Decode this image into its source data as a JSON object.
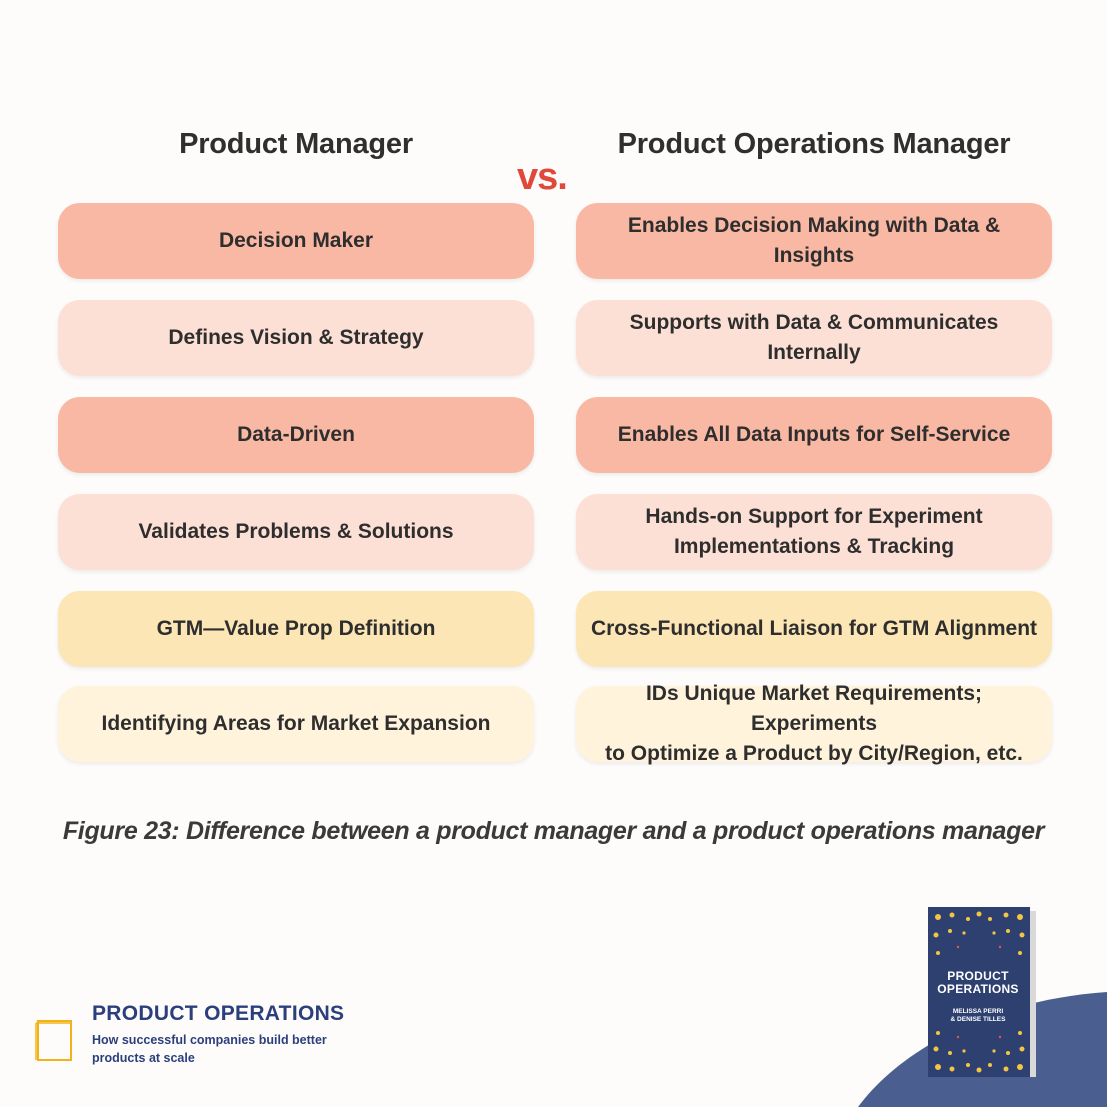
{
  "headers": {
    "left": "Product Manager",
    "vs": "vs.",
    "right": "Product Operations Manager"
  },
  "rows": [
    {
      "left": "Decision Maker",
      "right": "Enables Decision Making with Data & Insights",
      "color": "#f9b8a3"
    },
    {
      "left": "Defines Vision & Strategy",
      "right": "Supports with Data & Communicates Internally",
      "color": "#fde0d5"
    },
    {
      "left": "Data-Driven",
      "right": "Enables All Data Inputs for Self-Service",
      "color": "#f9b8a3"
    },
    {
      "left": "Validates Problems & Solutions",
      "right": "Hands-on Support for Experiment\nImplementations & Tracking",
      "color": "#fde0d5"
    },
    {
      "left": "GTM—Value Prop Definition",
      "right": "Cross-Functional Liaison for GTM Alignment",
      "color": "#fde6b5"
    },
    {
      "left": "Identifying Areas for Market Expansion",
      "right": "IDs Unique Market Requirements; Experiments\nto Optimize a Product by City/Region, etc.",
      "color": "#fff3dc"
    }
  ],
  "caption": "Figure 23: Difference between a product manager and a product operations manager",
  "brand": {
    "icon": "book-outline-icon",
    "title": "PRODUCT OPERATIONS",
    "subtitle": "How successful companies build better products at scale"
  },
  "book": {
    "title": "PRODUCT\nOPERATIONS",
    "authors": "MELISSA PERRI\n& DENISE TILLES",
    "cover_color": "#2e4070",
    "dot_color": "#f4c542"
  },
  "colors": {
    "accent_red": "#e0483a",
    "brand_blue": "#2b3f7c",
    "wave_blue": "#4a5f8f"
  }
}
